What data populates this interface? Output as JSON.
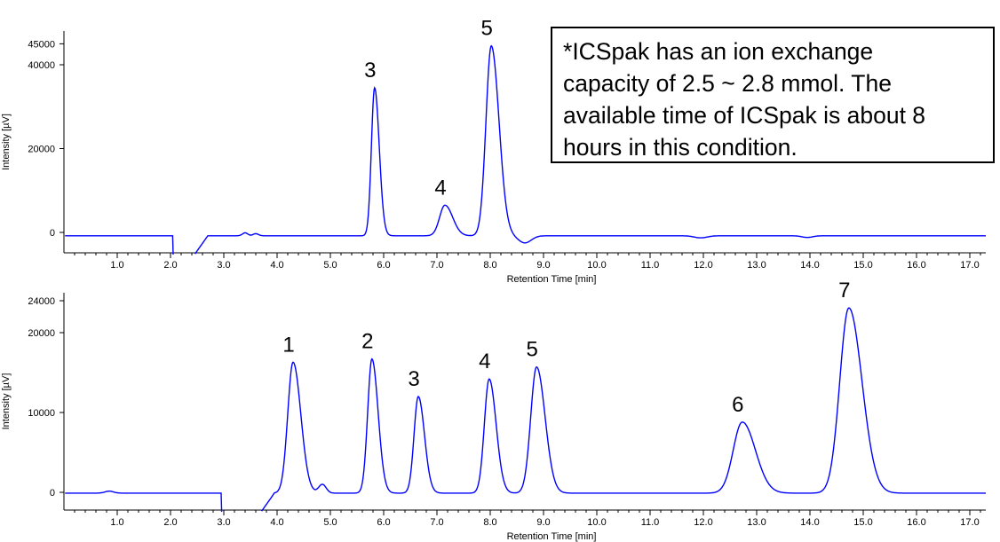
{
  "chart_data": [
    {
      "type": "line",
      "name": "top-chromatogram",
      "xlabel": "Retention Time [min]",
      "ylabel": "Intensity [µV]",
      "xlim": [
        0,
        17.3
      ],
      "ylim": [
        -5000,
        47000
      ],
      "xticks": [
        "1.0",
        "2.0",
        "3.0",
        "4.0",
        "5.0",
        "6.0",
        "7.0",
        "8.0",
        "9.0",
        "10.0",
        "11.0",
        "12.0",
        "13.0",
        "14.0",
        "15.0",
        "16.0",
        "17.0"
      ],
      "yticks": [
        "0",
        "20000",
        "40000",
        "45000"
      ],
      "baseline": -800,
      "features": [
        {
          "kind": "dip",
          "from": 2.05,
          "to": 2.45
        },
        {
          "kind": "bump",
          "x": 3.4,
          "height": 700,
          "width": 0.05
        },
        {
          "kind": "bump",
          "x": 3.6,
          "height": 500,
          "width": 0.05
        },
        {
          "kind": "trough",
          "x": 8.65,
          "depth": -1700,
          "width": 0.12
        },
        {
          "kind": "trough",
          "x": 11.95,
          "depth": -500,
          "width": 0.12
        },
        {
          "kind": "trough",
          "x": 13.95,
          "depth": -400,
          "width": 0.1
        }
      ],
      "peaks": [
        {
          "label": "3",
          "x": 5.83,
          "y": 34500,
          "width": 0.06
        },
        {
          "label": "4",
          "x": 7.15,
          "y": 6500,
          "width": 0.1
        },
        {
          "label": "5",
          "x": 8.02,
          "y": 44500,
          "width": 0.1
        }
      ]
    },
    {
      "type": "line",
      "name": "bottom-chromatogram",
      "xlabel": "Retention Time [min]",
      "ylabel": "Intensity [µV]",
      "xlim": [
        0,
        17.3
      ],
      "ylim": [
        -2500,
        25500
      ],
      "xticks": [
        "1.0",
        "2.0",
        "3.0",
        "4.0",
        "5.0",
        "6.0",
        "7.0",
        "8.0",
        "9.0",
        "10.0",
        "11.0",
        "12.0",
        "13.0",
        "14.0",
        "15.0",
        "16.0",
        "17.0"
      ],
      "yticks": [
        "0",
        "10000",
        "20000",
        "24000"
      ],
      "baseline": -100,
      "features": [
        {
          "kind": "bump",
          "x": 0.85,
          "height": 250,
          "width": 0.08
        },
        {
          "kind": "dip",
          "from": 2.95,
          "to": 3.7
        },
        {
          "kind": "bump",
          "x": 4.85,
          "height": 1100,
          "width": 0.07
        }
      ],
      "peaks": [
        {
          "label": "1",
          "x": 4.3,
          "y": 16300,
          "width": 0.1
        },
        {
          "label": "2",
          "x": 5.78,
          "y": 16700,
          "width": 0.08
        },
        {
          "label": "3",
          "x": 6.65,
          "y": 12000,
          "width": 0.08
        },
        {
          "label": "4",
          "x": 7.98,
          "y": 14200,
          "width": 0.09
        },
        {
          "label": "5",
          "x": 8.87,
          "y": 15700,
          "width": 0.11
        },
        {
          "label": "6",
          "x": 12.73,
          "y": 8800,
          "width": 0.17
        },
        {
          "label": "7",
          "x": 14.73,
          "y": 23100,
          "width": 0.17
        }
      ]
    }
  ],
  "note": {
    "line1": "*ICSpak has an ion exchange",
    "line2": "capacity of 2.5 ~ 2.8 mmol. The",
    "line3": "available time of ICSpak is about 8",
    "line4": "hours in this condition."
  },
  "colors": {
    "trace": "#0000ff",
    "axis": "#000000"
  }
}
